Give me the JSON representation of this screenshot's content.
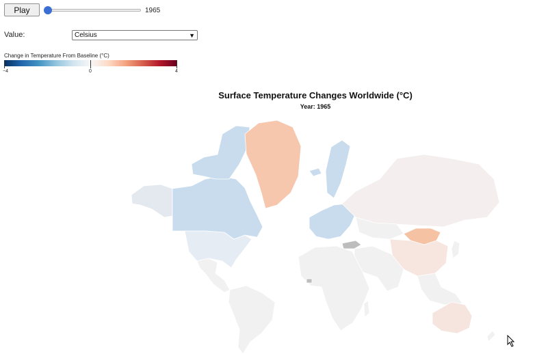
{
  "controls": {
    "play_label": "Play",
    "year_value": "1965",
    "slider_fraction": 0,
    "value_label": "Value:",
    "value_selected": "Celsius"
  },
  "legend": {
    "title": "Change in Temperature From Baseline (°C)",
    "ticks": [
      "−4",
      "0",
      "4"
    ],
    "domain": [
      -4,
      4
    ]
  },
  "map": {
    "title": "Surface Temperature Changes Worldwide (°C)",
    "subtitle": "Year: 1965",
    "no_data_color": "#bdbdbd",
    "colors": {
      "greenland": "#f6c6ad",
      "canada": "#c8dcee",
      "usa": "#e5ecf4",
      "alaska": "#e4e9f0",
      "mongolia": "#f5c2a3",
      "russia": "#f4eeee",
      "china": "#f7e6e0",
      "australia": "#f6e4de",
      "neutral": "#f1f1f1"
    }
  }
}
